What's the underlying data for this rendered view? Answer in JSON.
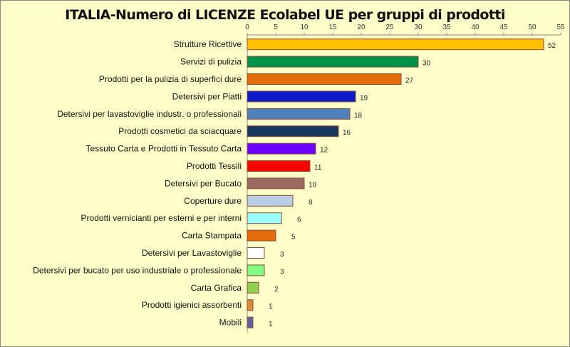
{
  "chart_data": {
    "type": "bar",
    "orientation": "horizontal",
    "title": "ITALIA-Numero di LICENZE  Ecolabel UE per gruppi di prodotti",
    "xlabel": "",
    "ylabel": "",
    "xlim": [
      0,
      55
    ],
    "xticks": [
      0,
      5,
      10,
      15,
      20,
      25,
      30,
      35,
      40,
      45,
      50,
      55
    ],
    "axis_position": "top",
    "grid": false,
    "legend": "none",
    "categories": [
      "Strutture Ricettive",
      "Servizi di pulizia",
      "Prodotti per la pulizia di superfici dure",
      "Detersivi per Piatti",
      "Detersivi per lavastoviglie industr. o professionali",
      "Prodotti cosmetici da sciacquare",
      "Tessuto Carta e  Prodotti in Tessuto Carta",
      "Prodotti Tessili",
      "Detersivi per Bucato",
      "Coperture dure",
      "Prodotti vernicianti per esterni e per interni",
      "Carta Stampata",
      "Detersivi per Lavastoviglie",
      "Detersivi per bucato per uso industriale o professionale",
      "Carta Grafica",
      "Prodotti igienici assorbenti",
      "Mobili"
    ],
    "values": [
      52,
      30,
      27,
      19,
      18,
      16,
      12,
      11,
      10,
      8,
      6,
      5,
      3,
      3,
      2,
      1,
      1
    ],
    "colors": [
      "#ffc000",
      "#00924a",
      "#e46c0a",
      "#0d1bc8",
      "#4f81bd",
      "#17375e",
      "#6a00ff",
      "#ff0000",
      "#9b6a62",
      "#b9cde5",
      "#99ffff",
      "#e46c0a",
      "#ffffff",
      "#80ff80",
      "#92d050",
      "#e08b3a",
      "#6060a0"
    ],
    "background": "#ffffc9"
  }
}
